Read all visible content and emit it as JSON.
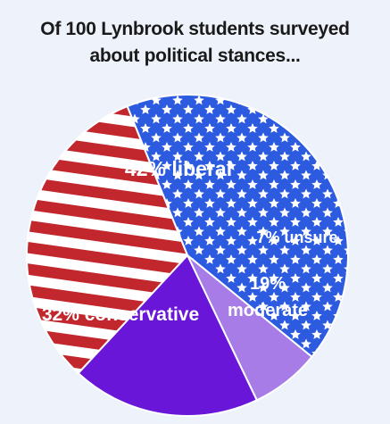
{
  "chart_data": {
    "type": "pie",
    "title_lines": [
      "Of 100 Lynbrook students surveyed",
      "about political stances..."
    ],
    "slices": [
      {
        "category": "liberal",
        "value": 42,
        "label": "42% liberal",
        "style": "stars",
        "color": "#2c5be0"
      },
      {
        "category": "unsure",
        "value": 7,
        "label": "7% unsure",
        "style": "solid",
        "color": "#a77ce6"
      },
      {
        "category": "moderate",
        "value": 19,
        "label_lines": [
          "19%",
          "moderate"
        ],
        "style": "solid",
        "color": "#6a16d8"
      },
      {
        "category": "conservative",
        "value": 32,
        "label": "32% conservative",
        "style": "stripes",
        "color": "#c1272d"
      }
    ],
    "legend": "none",
    "colors": {
      "star_field": "#2c5be0",
      "star": "#ffffff",
      "stripe_red": "#c1272d",
      "stripe_white": "#ffffff",
      "edge": "#ffffff"
    }
  }
}
